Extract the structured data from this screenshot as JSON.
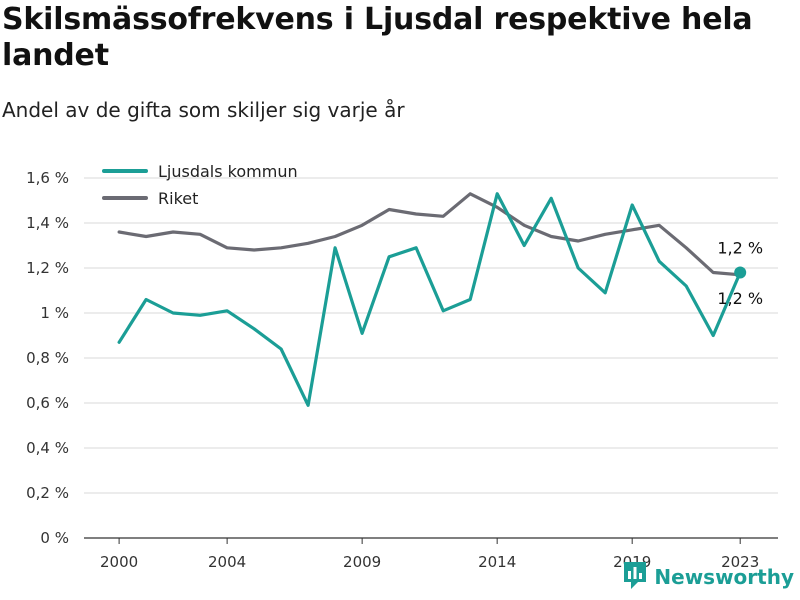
{
  "header": {
    "title": "Skilsmässofrekvens i Ljusdal respektive hela landet",
    "subtitle": "Andel av de gifta som skiljer sig varje år"
  },
  "brand": {
    "name": "Newsworthy",
    "icon": "newsworthy-logo-icon",
    "color": "#1b9e96"
  },
  "chart_data": {
    "type": "line",
    "x": [
      2000,
      2001,
      2002,
      2003,
      2004,
      2005,
      2006,
      2007,
      2008,
      2009,
      2010,
      2011,
      2012,
      2013,
      2014,
      2015,
      2016,
      2017,
      2018,
      2019,
      2020,
      2021,
      2022,
      2023
    ],
    "xticks": [
      2000,
      2004,
      2009,
      2014,
      2019,
      2023
    ],
    "xlim": [
      1998.7,
      2024.4
    ],
    "yticks": [
      0,
      0.2,
      0.4,
      0.6,
      0.8,
      1.0,
      1.2,
      1.4,
      1.6
    ],
    "ytick_labels": [
      "0 %",
      "0,2 %",
      "0,4 %",
      "0,6 %",
      "0,8 %",
      "1 %",
      "1,2 %",
      "1,4 %",
      "1,6 %"
    ],
    "ylim": [
      0,
      1.6
    ],
    "grid": true,
    "legend": "top-left",
    "series": [
      {
        "name": "Ljusdals kommun",
        "color": "#1b9e96",
        "values": [
          0.87,
          1.06,
          1.0,
          0.99,
          1.01,
          0.93,
          0.84,
          0.59,
          1.29,
          0.91,
          1.25,
          1.29,
          1.01,
          1.06,
          1.53,
          1.3,
          1.51,
          1.2,
          1.09,
          1.48,
          1.23,
          1.12,
          0.9,
          1.18
        ],
        "end_label": "1,2 %"
      },
      {
        "name": "Riket",
        "color": "#6b6b73",
        "values": [
          1.36,
          1.34,
          1.36,
          1.35,
          1.29,
          1.28,
          1.29,
          1.31,
          1.34,
          1.39,
          1.46,
          1.44,
          1.43,
          1.53,
          1.47,
          1.39,
          1.34,
          1.32,
          1.35,
          1.37,
          1.39,
          1.29,
          1.18,
          1.17
        ],
        "end_label": "1,2 %"
      }
    ]
  }
}
